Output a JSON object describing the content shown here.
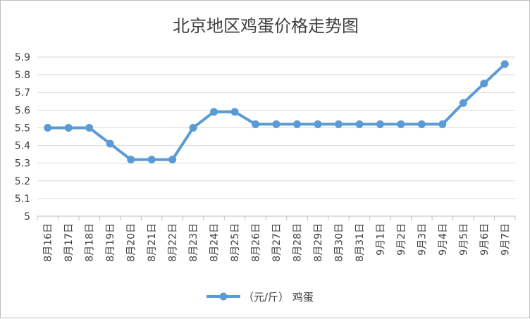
{
  "chart_data": {
    "type": "line",
    "title": "北京地区鸡蛋价格走势图",
    "categories": [
      "8月16日",
      "8月17日",
      "8月18日",
      "8月19日",
      "8月20日",
      "8月21日",
      "8月22日",
      "8月23日",
      "8月24日",
      "8月25日",
      "8月26日",
      "8月27日",
      "8月28日",
      "8月29日",
      "8月30日",
      "8月31日",
      "9月1日",
      "9月2日",
      "9月3日",
      "9月4日",
      "9月5日",
      "9月6日",
      "9月7日"
    ],
    "series": [
      {
        "name": "（元/斤） 鸡蛋",
        "values": [
          5.5,
          5.5,
          5.5,
          5.41,
          5.32,
          5.32,
          5.32,
          5.5,
          5.59,
          5.59,
          5.52,
          5.52,
          5.52,
          5.52,
          5.52,
          5.52,
          5.52,
          5.52,
          5.52,
          5.52,
          5.64,
          5.75,
          5.86
        ]
      }
    ],
    "ylim": [
      5,
      5.9
    ],
    "yticks": [
      "5",
      "5.1",
      "5.2",
      "5.3",
      "5.4",
      "5.5",
      "5.6",
      "5.7",
      "5.8",
      "5.9"
    ],
    "grid": "horizontal",
    "legend": "bottom",
    "color": "#5b9bd5",
    "gridColor": "#d9d9d9",
    "axisColor": "#bfbfbf"
  }
}
